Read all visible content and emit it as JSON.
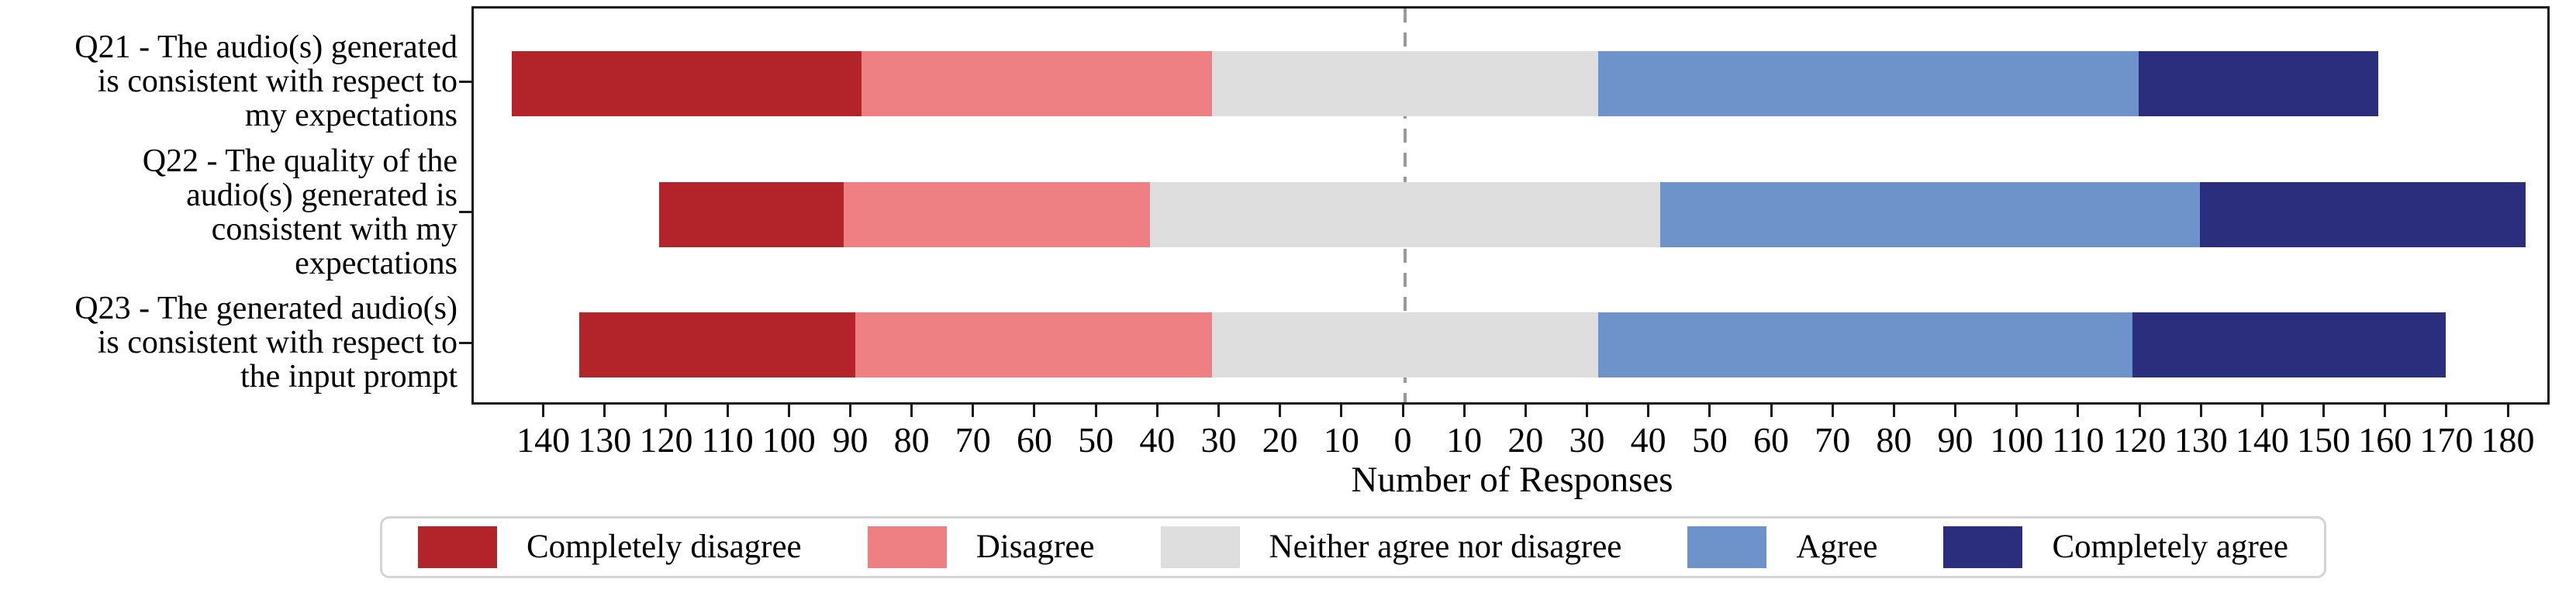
{
  "chart_data": {
    "type": "bar",
    "variant": "horizontal-diverging-stacked-likert",
    "title": "",
    "xlabel": "Number of Responses",
    "ylabel": "",
    "categories": [
      "Q21 - The audio(s) generated is consistent with respect to my expectations",
      "Q22 - The quality of the audio(s) generated is consistent with my expectations",
      "Q23 - The generated audio(s) is consistent with respect to the input prompt"
    ],
    "category_lines": [
      [
        "Q21 - The audio(s) generated",
        "is consistent with respect to",
        "my expectations"
      ],
      [
        "Q22 - The quality of the",
        "audio(s) generated is",
        "consistent with my",
        "expectations"
      ],
      [
        "Q23 - The generated audio(s)",
        "is consistent with respect to",
        "the input prompt"
      ]
    ],
    "series": [
      {
        "name": "Completely disagree",
        "color": "#b2232a",
        "values": [
          57,
          30,
          45
        ]
      },
      {
        "name": "Disagree",
        "color": "#ee8084",
        "values": [
          57,
          50,
          58
        ]
      },
      {
        "name": "Neither agree nor disagree",
        "color": "#dedede",
        "values": [
          63,
          83,
          63
        ]
      },
      {
        "name": "Agree",
        "color": "#6e93ca",
        "values": [
          88,
          88,
          87
        ]
      },
      {
        "name": "Completely agree",
        "color": "#2a2e7c",
        "values": [
          39,
          53,
          51
        ]
      }
    ],
    "totals": [
      304,
      304,
      304
    ],
    "neutral_split_at_zero": true,
    "x_tick_values": [
      -140,
      -130,
      -120,
      -110,
      -100,
      -90,
      -80,
      -70,
      -60,
      -50,
      -40,
      -30,
      -20,
      -10,
      0,
      10,
      20,
      30,
      40,
      50,
      60,
      70,
      80,
      90,
      100,
      110,
      120,
      130,
      140,
      150,
      160,
      170,
      180
    ],
    "x_tick_labels": [
      "140",
      "130",
      "120",
      "110",
      "100",
      "90",
      "80",
      "70",
      "60",
      "50",
      "40",
      "30",
      "20",
      "10",
      "0",
      "10",
      "20",
      "30",
      "40",
      "50",
      "60",
      "70",
      "80",
      "90",
      "100",
      "110",
      "120",
      "130",
      "140",
      "150",
      "160",
      "170",
      "180"
    ],
    "xlim": [
      -151.6,
      186.7
    ],
    "zero_line": {
      "value": 0,
      "style": "dashed",
      "color": "#999999"
    },
    "axis_color": "#1a1a1a",
    "grid": false,
    "legend_position": "bottom"
  }
}
